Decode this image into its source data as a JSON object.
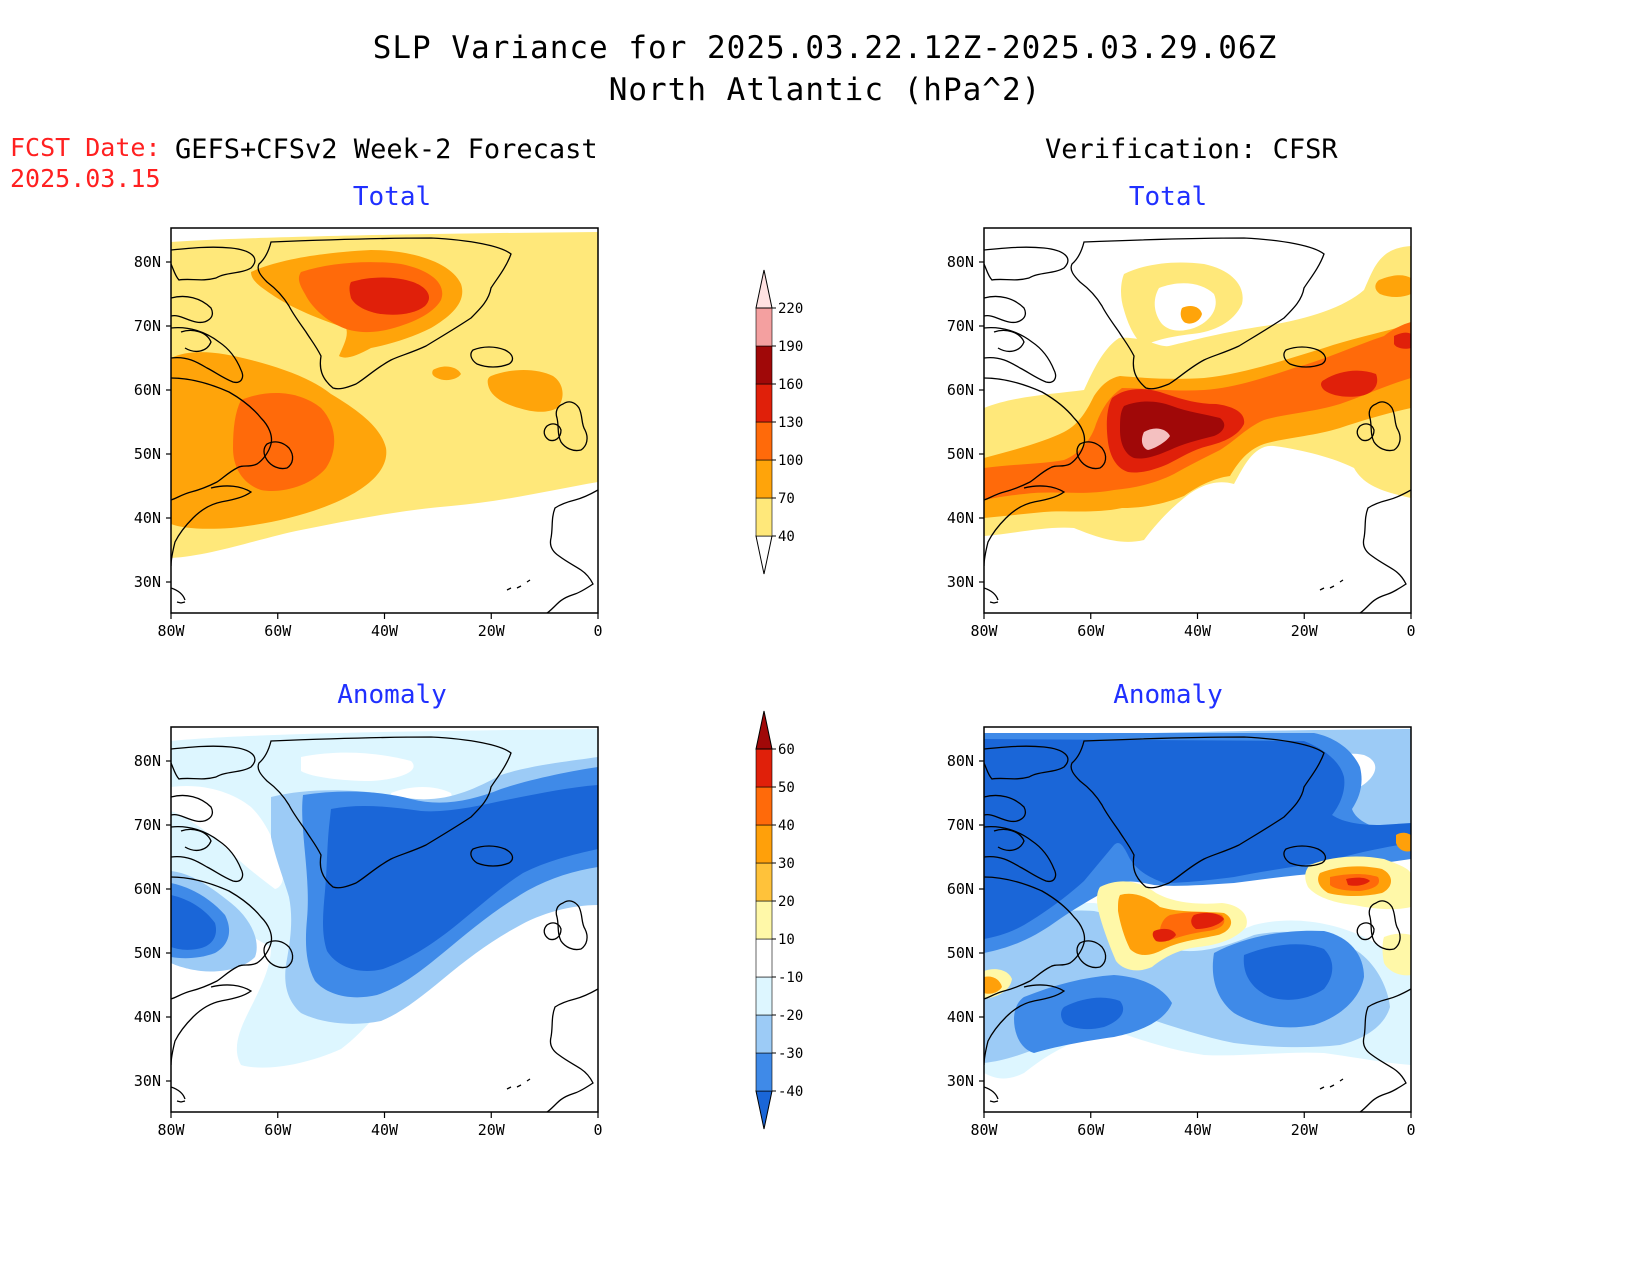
{
  "header": {
    "title_line1": "SLP Variance for 2025.03.22.12Z-2025.03.29.06Z",
    "title_line2": "North Atlantic (hPa^2)"
  },
  "fcst": {
    "label": "FCST Date:",
    "date": "2025.03.15"
  },
  "columns": {
    "left_title": "GEFS+CFSv2 Week-2 Forecast",
    "right_title": "Verification: CFSR"
  },
  "panels": {
    "total_left": "Total",
    "total_right": "Total",
    "anomaly_left": "Anomaly",
    "anomaly_right": "Anomaly"
  },
  "axes": {
    "lat_labels": [
      "80N",
      "70N",
      "60N",
      "50N",
      "40N",
      "30N"
    ],
    "lon_labels": [
      "80W",
      "60W",
      "40W",
      "20W",
      "0"
    ]
  },
  "colorbar_total": {
    "levels": [
      "40",
      "70",
      "100",
      "130",
      "160",
      "190",
      "220"
    ],
    "colors": [
      "#ffe87a",
      "#ffa40a",
      "#ff6a0a",
      "#e0200a",
      "#a00808",
      "#f4a0a0",
      "#ffe2e2"
    ]
  },
  "colorbar_anomaly": {
    "levels": [
      "-40",
      "-30",
      "-20",
      "-10",
      "10",
      "20",
      "30",
      "40",
      "50",
      "60"
    ],
    "colors_neg": [
      "#1a66d8",
      "#3f8ae8",
      "#9ccbf6",
      "#ddf6ff"
    ],
    "colors_pos": [
      "#fff8a8",
      "#ffc23a",
      "#ffa00a",
      "#ff6a0a",
      "#e0200a",
      "#a00808"
    ]
  },
  "map_colors": {
    "yellow": "#ffe87a",
    "orange": "#ffa40a",
    "dark_orange": "#ff6a0a",
    "red": "#e0200a",
    "dark_red": "#a00808",
    "pink": "#f4c0c0",
    "pale_cyan": "#ddf6ff",
    "light_blue": "#9ccbf6",
    "mid_blue": "#3f8ae8",
    "deep_blue": "#1a66d8"
  }
}
